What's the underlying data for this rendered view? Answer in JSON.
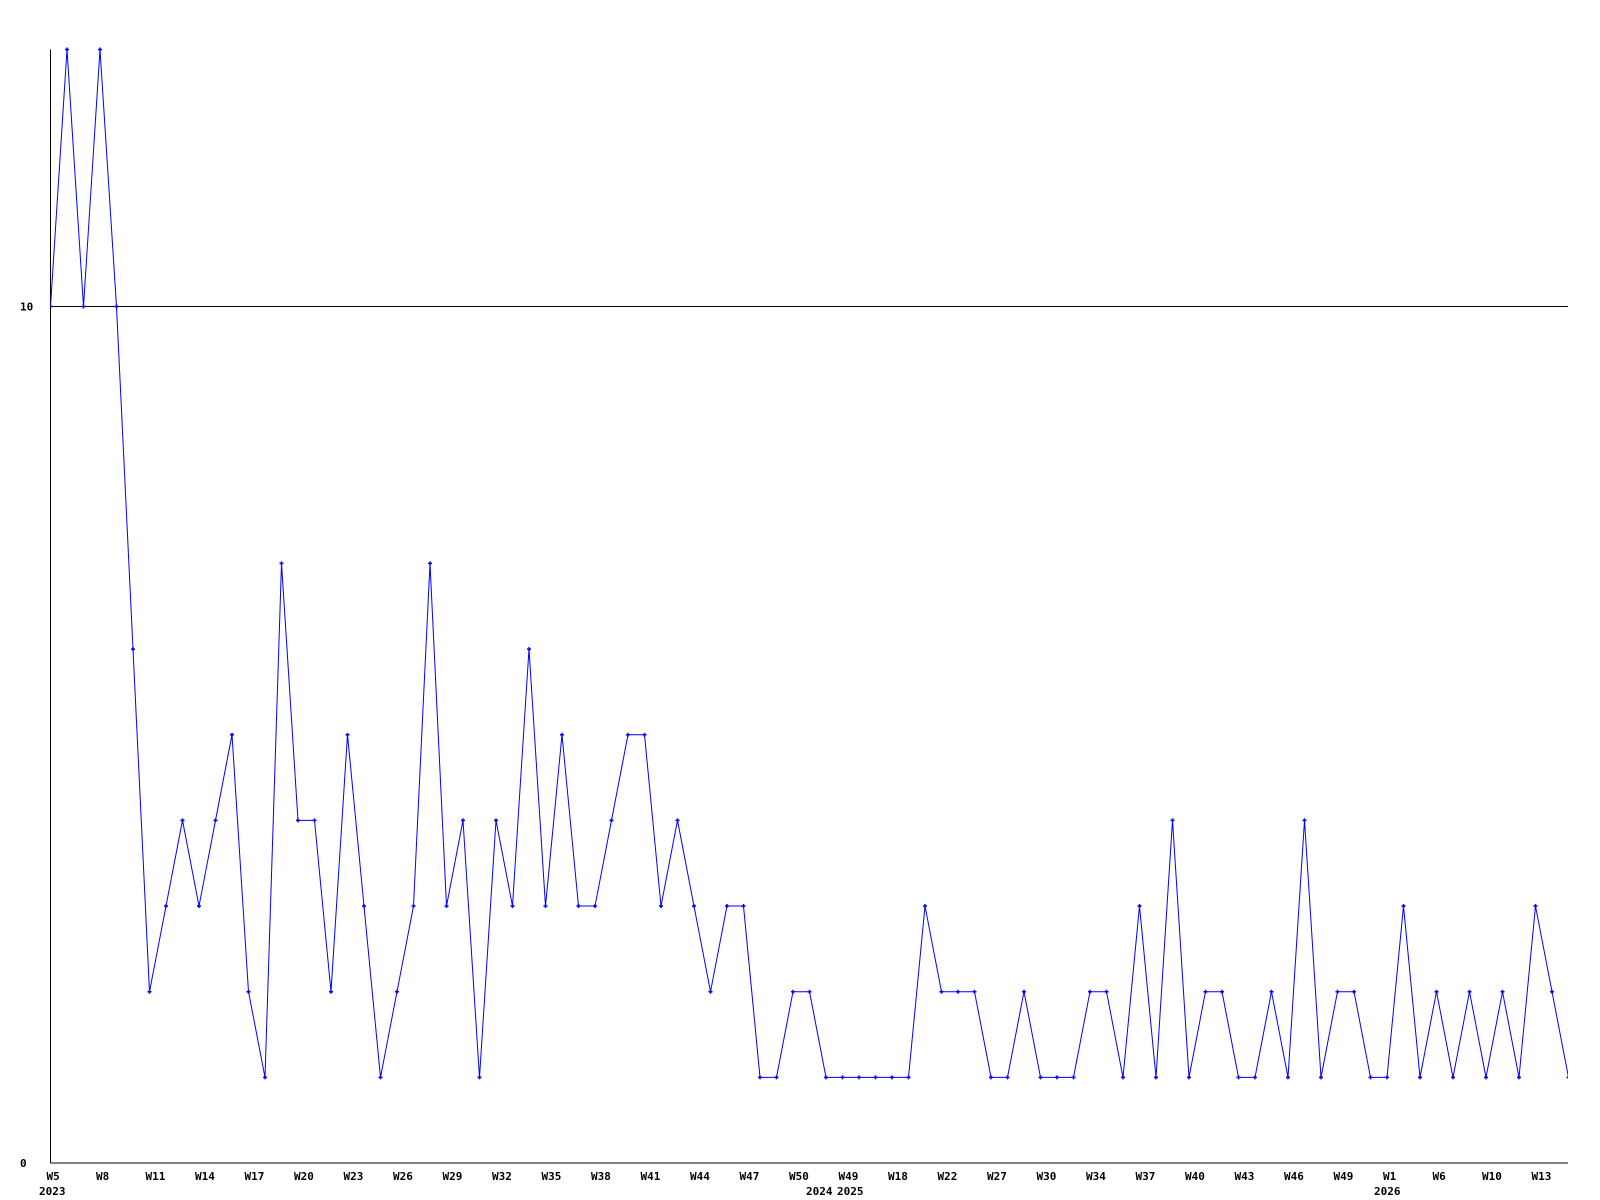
{
  "chart_data": {
    "type": "line",
    "title": "",
    "xlabel": "",
    "ylabel": "",
    "ylim": [
      0,
      13
    ],
    "y_ticks": [
      "0",
      "10"
    ],
    "grid": "horizontal line at 10",
    "line_color": "#0000ff",
    "x_tick_labels": [
      "W5",
      "W8",
      "W11",
      "W14",
      "W17",
      "W20",
      "W23",
      "W26",
      "W29",
      "W32",
      "W35",
      "W38",
      "W41",
      "W44",
      "W47",
      "W50",
      "W49",
      "W18",
      "W22",
      "W27",
      "W30",
      "W34",
      "W37",
      "W40",
      "W43",
      "W46",
      "W49",
      "W1",
      "W6",
      "W10",
      "W13"
    ],
    "year_labels": [
      "2023",
      "2024",
      "2025",
      "2026"
    ],
    "values": [
      10,
      13,
      10,
      13,
      10,
      6,
      2,
      3,
      4,
      3,
      4,
      5,
      2,
      1,
      7,
      4,
      4,
      2,
      5,
      3,
      1,
      2,
      3,
      7,
      3,
      4,
      1,
      4,
      3,
      6,
      3,
      5,
      3,
      3,
      4,
      5,
      5,
      3,
      4,
      3,
      2,
      3,
      3,
      1,
      1,
      2,
      2,
      1,
      1,
      1,
      1,
      1,
      1,
      3,
      2,
      2,
      2,
      1,
      1,
      2,
      1,
      1,
      1,
      2,
      2,
      1,
      3,
      1,
      4,
      1,
      2,
      2,
      1,
      1,
      2,
      1,
      4,
      1,
      2,
      2,
      1,
      1,
      3,
      1,
      2,
      1,
      2,
      1,
      2,
      1,
      3,
      2,
      1
    ]
  }
}
